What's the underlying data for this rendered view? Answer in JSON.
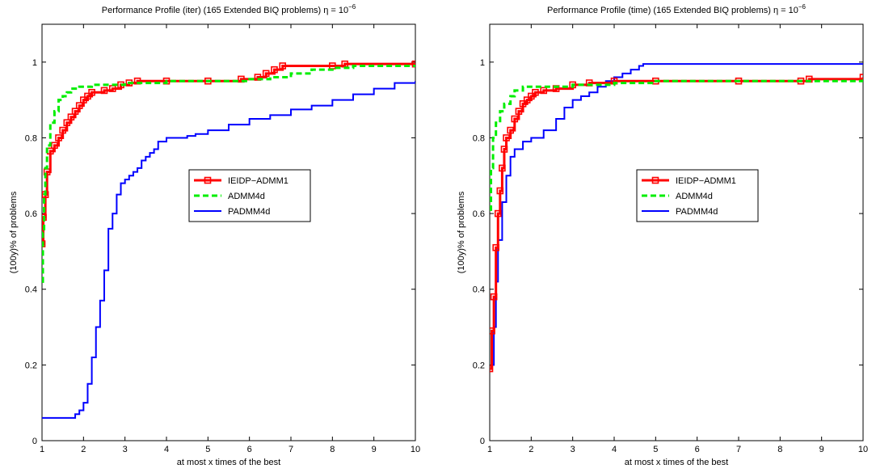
{
  "chart_data": [
    {
      "type": "line",
      "title": "Performance Profile (iter) (165 Extended BIQ problems) η = 10",
      "title_exponent": "−6",
      "xlabel": "at most x times of the best",
      "ylabel": "(100y)% of problems",
      "xlim": [
        1,
        10
      ],
      "ylim": [
        0,
        1.1
      ],
      "xticks": [
        "1",
        "2",
        "3",
        "4",
        "5",
        "6",
        "7",
        "8",
        "9",
        "10"
      ],
      "yticks": [
        "0",
        "0.2",
        "0.4",
        "0.6",
        "0.8",
        "1"
      ],
      "grid": false,
      "legend_position": "right-center",
      "series": [
        {
          "name": "IEIDP−ADMM1",
          "color": "#ff0000",
          "style": "solid-square-markers",
          "points": [
            [
              1,
              0.52
            ],
            [
              1.03,
              0.59
            ],
            [
              1.08,
              0.65
            ],
            [
              1.12,
              0.71
            ],
            [
              1.2,
              0.765
            ],
            [
              1.3,
              0.78
            ],
            [
              1.4,
              0.8
            ],
            [
              1.5,
              0.82
            ],
            [
              1.6,
              0.84
            ],
            [
              1.7,
              0.855
            ],
            [
              1.8,
              0.87
            ],
            [
              1.9,
              0.885
            ],
            [
              2.0,
              0.9
            ],
            [
              2.1,
              0.91
            ],
            [
              2.2,
              0.92
            ],
            [
              2.5,
              0.925
            ],
            [
              2.7,
              0.93
            ],
            [
              2.9,
              0.94
            ],
            [
              3.1,
              0.945
            ],
            [
              3.3,
              0.95
            ],
            [
              4.0,
              0.95
            ],
            [
              5.0,
              0.95
            ],
            [
              5.8,
              0.955
            ],
            [
              6.2,
              0.96
            ],
            [
              6.4,
              0.97
            ],
            [
              6.6,
              0.98
            ],
            [
              6.8,
              0.99
            ],
            [
              8.0,
              0.99
            ],
            [
              8.3,
              0.995
            ],
            [
              10,
              0.995
            ]
          ]
        },
        {
          "name": "ADMM4d",
          "color": "#00ee00",
          "style": "dashed",
          "points": [
            [
              1,
              0.42
            ],
            [
              1.02,
              0.55
            ],
            [
              1.05,
              0.65
            ],
            [
              1.08,
              0.72
            ],
            [
              1.12,
              0.78
            ],
            [
              1.2,
              0.84
            ],
            [
              1.3,
              0.87
            ],
            [
              1.4,
              0.9
            ],
            [
              1.5,
              0.91
            ],
            [
              1.6,
              0.92
            ],
            [
              1.7,
              0.93
            ],
            [
              1.9,
              0.935
            ],
            [
              2.2,
              0.94
            ],
            [
              2.8,
              0.94
            ],
            [
              3.0,
              0.945
            ],
            [
              4.0,
              0.95
            ],
            [
              5.0,
              0.95
            ],
            [
              6.0,
              0.955
            ],
            [
              6.5,
              0.96
            ],
            [
              7.0,
              0.97
            ],
            [
              7.5,
              0.98
            ],
            [
              8.0,
              0.985
            ],
            [
              8.5,
              0.99
            ],
            [
              10,
              0.99
            ]
          ]
        },
        {
          "name": "PADMM4d",
          "color": "#0000ff",
          "style": "solid",
          "points": [
            [
              1,
              0.06
            ],
            [
              1.7,
              0.06
            ],
            [
              1.8,
              0.07
            ],
            [
              1.9,
              0.08
            ],
            [
              2.0,
              0.1
            ],
            [
              2.1,
              0.15
            ],
            [
              2.2,
              0.22
            ],
            [
              2.3,
              0.3
            ],
            [
              2.4,
              0.37
            ],
            [
              2.5,
              0.45
            ],
            [
              2.6,
              0.56
            ],
            [
              2.7,
              0.6
            ],
            [
              2.8,
              0.65
            ],
            [
              2.9,
              0.68
            ],
            [
              3.0,
              0.69
            ],
            [
              3.1,
              0.7
            ],
            [
              3.2,
              0.71
            ],
            [
              3.3,
              0.72
            ],
            [
              3.4,
              0.74
            ],
            [
              3.5,
              0.75
            ],
            [
              3.6,
              0.76
            ],
            [
              3.7,
              0.77
            ],
            [
              3.8,
              0.79
            ],
            [
              4.0,
              0.8
            ],
            [
              4.5,
              0.805
            ],
            [
              4.7,
              0.81
            ],
            [
              5.0,
              0.82
            ],
            [
              5.5,
              0.835
            ],
            [
              6.0,
              0.85
            ],
            [
              6.5,
              0.86
            ],
            [
              7.0,
              0.875
            ],
            [
              7.5,
              0.885
            ],
            [
              8.0,
              0.9
            ],
            [
              8.5,
              0.915
            ],
            [
              9.0,
              0.93
            ],
            [
              9.5,
              0.945
            ],
            [
              10,
              0.95
            ]
          ]
        }
      ]
    },
    {
      "type": "line",
      "title": "Performance Profile (time) (165 Extended BIQ problems) η = 10",
      "title_exponent": "−6",
      "xlabel": "at most x times of the best",
      "ylabel": "(100y)% of problems",
      "xlim": [
        1,
        10
      ],
      "ylim": [
        0,
        1.1
      ],
      "xticks": [
        "1",
        "2",
        "3",
        "4",
        "5",
        "6",
        "7",
        "8",
        "9",
        "10"
      ],
      "yticks": [
        "0",
        "0.2",
        "0.4",
        "0.6",
        "0.8",
        "1"
      ],
      "grid": false,
      "legend_position": "right-center",
      "series": [
        {
          "name": "IEIDP−ADMM1",
          "color": "#ff0000",
          "style": "solid-square-markers",
          "points": [
            [
              1,
              0.19
            ],
            [
              1.05,
              0.29
            ],
            [
              1.1,
              0.38
            ],
            [
              1.15,
              0.51
            ],
            [
              1.2,
              0.6
            ],
            [
              1.25,
              0.66
            ],
            [
              1.3,
              0.72
            ],
            [
              1.35,
              0.77
            ],
            [
              1.4,
              0.8
            ],
            [
              1.5,
              0.82
            ],
            [
              1.6,
              0.85
            ],
            [
              1.7,
              0.87
            ],
            [
              1.8,
              0.89
            ],
            [
              1.9,
              0.9
            ],
            [
              2.0,
              0.91
            ],
            [
              2.1,
              0.92
            ],
            [
              2.3,
              0.925
            ],
            [
              2.6,
              0.93
            ],
            [
              3.0,
              0.94
            ],
            [
              3.4,
              0.945
            ],
            [
              4.0,
              0.95
            ],
            [
              5.0,
              0.95
            ],
            [
              7.0,
              0.95
            ],
            [
              8.5,
              0.95
            ],
            [
              8.7,
              0.955
            ],
            [
              10,
              0.96
            ]
          ]
        },
        {
          "name": "ADMM4d",
          "color": "#00ee00",
          "style": "dashed",
          "points": [
            [
              1,
              0.61
            ],
            [
              1.03,
              0.72
            ],
            [
              1.08,
              0.8
            ],
            [
              1.15,
              0.84
            ],
            [
              1.25,
              0.87
            ],
            [
              1.35,
              0.89
            ],
            [
              1.5,
              0.91
            ],
            [
              1.6,
              0.925
            ],
            [
              1.8,
              0.935
            ],
            [
              2.5,
              0.935
            ],
            [
              3.0,
              0.94
            ],
            [
              4.0,
              0.945
            ],
            [
              5.0,
              0.95
            ],
            [
              7.0,
              0.95
            ],
            [
              10,
              0.955
            ]
          ]
        },
        {
          "name": "PADMM4d",
          "color": "#0000ff",
          "style": "solid",
          "points": [
            [
              1,
              0.19
            ],
            [
              1.05,
              0.2
            ],
            [
              1.1,
              0.3
            ],
            [
              1.15,
              0.42
            ],
            [
              1.2,
              0.53
            ],
            [
              1.3,
              0.63
            ],
            [
              1.4,
              0.7
            ],
            [
              1.5,
              0.75
            ],
            [
              1.6,
              0.77
            ],
            [
              1.8,
              0.79
            ],
            [
              2.0,
              0.8
            ],
            [
              2.3,
              0.82
            ],
            [
              2.6,
              0.85
            ],
            [
              2.8,
              0.88
            ],
            [
              3.0,
              0.9
            ],
            [
              3.2,
              0.91
            ],
            [
              3.4,
              0.92
            ],
            [
              3.6,
              0.935
            ],
            [
              3.8,
              0.95
            ],
            [
              4.0,
              0.96
            ],
            [
              4.2,
              0.97
            ],
            [
              4.4,
              0.98
            ],
            [
              4.6,
              0.99
            ],
            [
              4.7,
              0.995
            ],
            [
              10,
              0.995
            ]
          ]
        }
      ]
    }
  ]
}
